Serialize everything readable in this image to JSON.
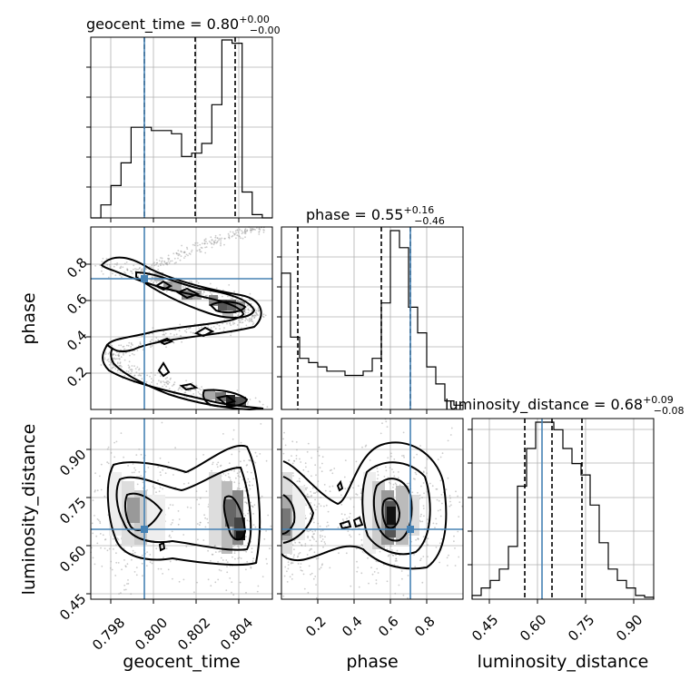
{
  "chart_data": {
    "type": "corner",
    "parameters": [
      "geocent_time",
      "phase",
      "luminosity_distance"
    ],
    "titles": [
      {
        "param": "geocent_time",
        "text": "geocent_time = 0.80",
        "err_plus": "+0.00",
        "err_minus": "−0.00"
      },
      {
        "param": "phase",
        "text": "phase = 0.55",
        "err_plus": "+0.16",
        "err_minus": "−0.46"
      },
      {
        "param": "luminosity_distance",
        "text": "luminosity_distance = 0.68",
        "err_plus": "+0.09",
        "err_minus": "−0.08"
      }
    ],
    "ranges": {
      "geocent_time": [
        0.79716,
        0.80564
      ],
      "phase": [
        0.001,
        0.999
      ],
      "luminosity_distance": [
        0.424,
        0.992
      ]
    },
    "ticks": {
      "geocent_time": [
        "0.798",
        "0.800",
        "0.802",
        "0.804"
      ],
      "phase": [
        "0.2",
        "0.4",
        "0.6",
        "0.8"
      ],
      "luminosity_distance": [
        "0.45",
        "0.60",
        "0.75",
        "0.90"
      ]
    },
    "truths": {
      "geocent_time": 0.79968,
      "phase": 0.7,
      "luminosity_distance": 0.645
    },
    "quantiles": {
      "geocent_time": [
        0.79968,
        0.8021,
        0.80396
      ],
      "phase": [
        0.09,
        0.55,
        0.71
      ],
      "luminosity_distance": [
        0.6,
        0.68,
        0.77
      ]
    },
    "histograms": {
      "geocent_time": [
        0,
        4,
        10,
        17,
        28,
        28,
        27,
        27,
        26,
        19,
        20,
        23,
        35,
        55,
        54,
        8,
        1,
        0
      ],
      "phase": [
        32,
        17,
        12,
        11,
        10,
        9,
        9,
        8,
        8,
        9,
        12,
        25,
        42,
        38,
        24,
        18,
        10,
        6,
        2,
        1
      ],
      "luminosity_distance": [
        1,
        3,
        5,
        8,
        14,
        30,
        40,
        47,
        47,
        45,
        40,
        36,
        33,
        25,
        15,
        8,
        5,
        3,
        1,
        0.5
      ]
    },
    "grid": true
  }
}
